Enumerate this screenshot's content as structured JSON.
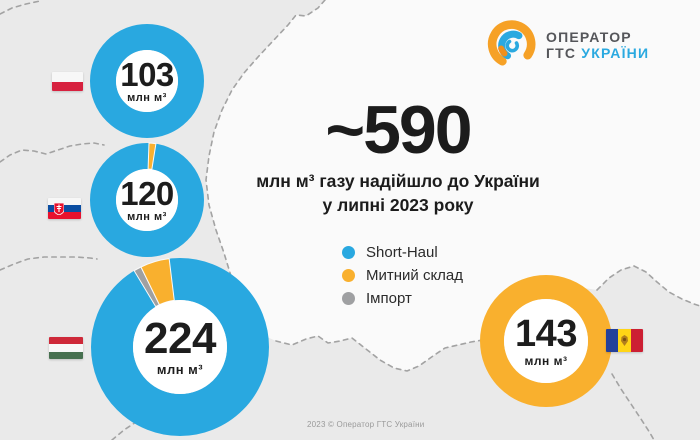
{
  "background": {
    "outside_color": "#EAEAEA",
    "map_fill_color": "#FAFAFA",
    "border_dash_color": "#A3A3A3"
  },
  "logo": {
    "line1": "Оператор",
    "line2_dark": "ГТС",
    "line2_accent": "України"
  },
  "headline": {
    "value": "~590",
    "subtitle_line1": "млн м³ газу надійшло до України",
    "subtitle_line2": "у липні 2023 року"
  },
  "legend": {
    "items": [
      {
        "label": "Short-Haul",
        "color": "#29A8E0"
      },
      {
        "label": "Митний склад",
        "color": "#F9B02E"
      },
      {
        "label": "Імпорт",
        "color": "#9FA0A2"
      }
    ]
  },
  "footer": {
    "copyright": "2023 © Оператор ГТС України"
  },
  "chart_data": {
    "type": "pie",
    "subtype": "donut-map-infographic",
    "title": "~590 млн м³ газу надійшло до України у липні 2023 року",
    "total_label": "~590",
    "unit": "млн м³",
    "period": "липень 2023",
    "legend_entries": [
      "Short-Haul",
      "Митний склад",
      "Імпорт"
    ],
    "colors": {
      "short_haul": "#29A8E0",
      "customs": "#F9B02E",
      "import": "#9FA0A2"
    },
    "donuts": [
      {
        "id": "poland",
        "flag": "flag-poland",
        "label": "103",
        "value": 103,
        "unit": "млн м³",
        "segments": [
          {
            "name": "Short-Haul",
            "color_key": "short_haul",
            "start_deg": 0,
            "end_deg": 360,
            "share": 1.0
          }
        ]
      },
      {
        "id": "slovakia",
        "flag": "flag-slovakia",
        "label": "120",
        "value": 120,
        "unit": "млн м³",
        "segments": [
          {
            "name": "Short-Haul",
            "color_key": "short_haul",
            "start_deg": 9,
            "end_deg": 362,
            "share": 0.98
          },
          {
            "name": "Митний склад",
            "color_key": "customs",
            "start_deg": 2,
            "end_deg": 9,
            "share": 0.02
          }
        ]
      },
      {
        "id": "hungary",
        "flag": "flag-hungary",
        "label": "224",
        "value": 224,
        "unit": "млн м³",
        "segments": [
          {
            "name": "Short-Haul",
            "color_key": "short_haul",
            "start_deg": -7,
            "end_deg": 329,
            "share": 0.935
          },
          {
            "name": "Імпорт",
            "color_key": "import",
            "start_deg": -31,
            "end_deg": -26,
            "share": 0.015
          },
          {
            "name": "Митний склад",
            "color_key": "customs",
            "start_deg": -26,
            "end_deg": -7,
            "share": 0.05
          }
        ]
      },
      {
        "id": "moldova",
        "flag": "flag-moldova",
        "label": "143",
        "value": 143,
        "unit": "млн м³",
        "segments": [
          {
            "name": "Митний склад",
            "color_key": "customs",
            "start_deg": 0,
            "end_deg": 360,
            "share": 1.0
          }
        ]
      }
    ]
  }
}
